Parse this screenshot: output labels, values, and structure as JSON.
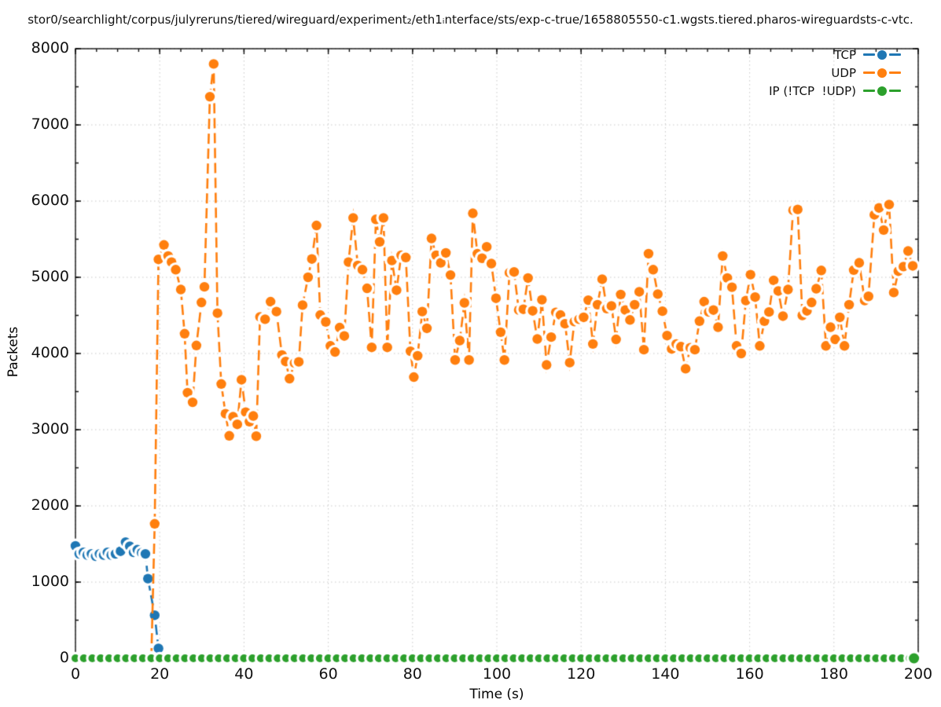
{
  "chart_data": {
    "type": "line",
    "title": "stor0/searchlight/corpus/julyreruns/tiered/wireguard/experiment₂/eth1ᵢnterface/sts/exp-c-true/1658805550-c1.wgsts.tiered.pharos-wireguardsts-c-vtc.",
    "xlabel": "Time (s)",
    "ylabel": "Packets",
    "xlim": [
      0,
      200
    ],
    "ylim": [
      0,
      8000
    ],
    "xticks": [
      0,
      20,
      40,
      60,
      80,
      100,
      120,
      140,
      160,
      180,
      200
    ],
    "yticks": [
      0,
      1000,
      2000,
      3000,
      4000,
      5000,
      6000,
      7000,
      8000
    ],
    "x_minor_step": 5,
    "y_minor_step": 500,
    "grid": true,
    "grid_color": "#c9c9c9",
    "background": "#ffffff",
    "legend_position": "inside-top-right",
    "series": [
      {
        "name": "TCP",
        "color": "#1f77b4",
        "style": "dashed-linespoints",
        "marker": "filled-circle-with-white-halo",
        "marker_radius": 6.2,
        "points": [
          [
            0,
            1475
          ],
          [
            0.9,
            1370
          ],
          [
            1.9,
            1390
          ],
          [
            2.8,
            1355
          ],
          [
            3.8,
            1370
          ],
          [
            4.8,
            1340
          ],
          [
            5.7,
            1370
          ],
          [
            6.7,
            1355
          ],
          [
            7.6,
            1390
          ],
          [
            8.5,
            1355
          ],
          [
            9.5,
            1370
          ],
          [
            10.7,
            1405
          ],
          [
            11.9,
            1525
          ],
          [
            12.9,
            1470
          ],
          [
            13.8,
            1390
          ],
          [
            14.7,
            1425
          ],
          [
            15.7,
            1385
          ],
          [
            16.6,
            1370
          ],
          [
            17.2,
            1045
          ],
          [
            18.8,
            565
          ],
          [
            19.7,
            130
          ]
        ]
      },
      {
        "name": "UDP",
        "color": "#ff7f0e",
        "style": "dashed-linespoints",
        "marker": "filled-circle-with-white-halo",
        "marker_radius": 6.2,
        "points": [
          [
            18,
            0
          ],
          [
            18.8,
            1765
          ],
          [
            19.7,
            5235
          ],
          [
            21,
            5425
          ],
          [
            22,
            5280
          ],
          [
            22.8,
            5200
          ],
          [
            23.8,
            5100
          ],
          [
            25,
            4840
          ],
          [
            25.9,
            4260
          ],
          [
            26.6,
            3485
          ],
          [
            27.8,
            3360
          ],
          [
            28.7,
            4105
          ],
          [
            29.9,
            4670
          ],
          [
            30.6,
            4875
          ],
          [
            31.9,
            7370
          ],
          [
            32.8,
            7800
          ],
          [
            33.7,
            4530
          ],
          [
            34.6,
            3600
          ],
          [
            35.6,
            3210
          ],
          [
            36.5,
            2920
          ],
          [
            37.4,
            3170
          ],
          [
            38.4,
            3070
          ],
          [
            39.4,
            3655
          ],
          [
            40.4,
            3230
          ],
          [
            41.3,
            3105
          ],
          [
            42.2,
            3180
          ],
          [
            42.9,
            2915
          ],
          [
            43.8,
            4480
          ],
          [
            45,
            4450
          ],
          [
            46.3,
            4680
          ],
          [
            47.7,
            4550
          ],
          [
            49,
            3980
          ],
          [
            49.9,
            3895
          ],
          [
            50.8,
            3670
          ],
          [
            52,
            3875
          ],
          [
            53,
            3890
          ],
          [
            53.9,
            4635
          ],
          [
            55.2,
            5000
          ],
          [
            56.1,
            5240
          ],
          [
            57.2,
            5680
          ],
          [
            58.1,
            4505
          ],
          [
            59.4,
            4415
          ],
          [
            60.5,
            4100
          ],
          [
            61.6,
            4020
          ],
          [
            62.7,
            4340
          ],
          [
            63.8,
            4230
          ],
          [
            64.8,
            5200
          ],
          [
            65.9,
            5780
          ],
          [
            67,
            5155
          ],
          [
            68.1,
            5100
          ],
          [
            69.2,
            4855
          ],
          [
            70.3,
            4080
          ],
          [
            71.3,
            5760
          ],
          [
            72.2,
            5465
          ],
          [
            73.1,
            5780
          ],
          [
            74,
            4080
          ],
          [
            75.1,
            5220
          ],
          [
            76.2,
            4830
          ],
          [
            77.3,
            5290
          ],
          [
            78.4,
            5260
          ],
          [
            79.5,
            4030
          ],
          [
            80.3,
            3690
          ],
          [
            81.2,
            3970
          ],
          [
            82.3,
            4550
          ],
          [
            83.4,
            4330
          ],
          [
            84.5,
            5510
          ],
          [
            85.6,
            5290
          ],
          [
            86.7,
            5190
          ],
          [
            87.9,
            5320
          ],
          [
            89,
            5030
          ],
          [
            90.1,
            3915
          ],
          [
            91.2,
            4170
          ],
          [
            92.3,
            4665
          ],
          [
            93.4,
            3915
          ],
          [
            94.3,
            5840
          ],
          [
            95.4,
            5310
          ],
          [
            96.5,
            5250
          ],
          [
            97.6,
            5400
          ],
          [
            98.7,
            5180
          ],
          [
            99.8,
            4725
          ],
          [
            100.9,
            4280
          ],
          [
            101.8,
            3915
          ],
          [
            103,
            5060
          ],
          [
            104.1,
            5070
          ],
          [
            105.2,
            4570
          ],
          [
            106.3,
            4580
          ],
          [
            107.4,
            4990
          ],
          [
            108.5,
            4560
          ],
          [
            109.6,
            4190
          ],
          [
            110.7,
            4705
          ],
          [
            111.8,
            3850
          ],
          [
            112.9,
            4215
          ],
          [
            114,
            4540
          ],
          [
            115.1,
            4505
          ],
          [
            116.2,
            4390
          ],
          [
            117.3,
            3880
          ],
          [
            118.4,
            4420
          ],
          [
            119.5,
            4450
          ],
          [
            120.6,
            4475
          ],
          [
            121.7,
            4700
          ],
          [
            122.8,
            4125
          ],
          [
            123.9,
            4640
          ],
          [
            125,
            4975
          ],
          [
            126.1,
            4590
          ],
          [
            127.2,
            4625
          ],
          [
            128.3,
            4185
          ],
          [
            129.4,
            4775
          ],
          [
            130.5,
            4570
          ],
          [
            131.6,
            4440
          ],
          [
            132.7,
            4640
          ],
          [
            133.8,
            4810
          ],
          [
            134.9,
            4050
          ],
          [
            136,
            5310
          ],
          [
            137.1,
            5100
          ],
          [
            138.2,
            4780
          ],
          [
            139.3,
            4555
          ],
          [
            140.4,
            4235
          ],
          [
            141.5,
            4060
          ],
          [
            142.6,
            4125
          ],
          [
            143.7,
            4090
          ],
          [
            144.8,
            3800
          ],
          [
            145.9,
            4075
          ],
          [
            147,
            4050
          ],
          [
            148.1,
            4425
          ],
          [
            149.2,
            4680
          ],
          [
            150.3,
            4545
          ],
          [
            151.4,
            4570
          ],
          [
            152.5,
            4345
          ],
          [
            153.6,
            5280
          ],
          [
            154.7,
            4990
          ],
          [
            155.8,
            4870
          ],
          [
            156.9,
            4100
          ],
          [
            158,
            4000
          ],
          [
            159.1,
            4695
          ],
          [
            160.2,
            5035
          ],
          [
            161.3,
            4740
          ],
          [
            162.4,
            4100
          ],
          [
            163.5,
            4425
          ],
          [
            164.6,
            4545
          ],
          [
            165.7,
            4960
          ],
          [
            166.8,
            4820
          ],
          [
            167.9,
            4490
          ],
          [
            169.1,
            4840
          ],
          [
            170.3,
            5880
          ],
          [
            171.4,
            5890
          ],
          [
            172.5,
            4500
          ],
          [
            173.6,
            4560
          ],
          [
            174.7,
            4670
          ],
          [
            175.8,
            4850
          ],
          [
            177,
            5090
          ],
          [
            178.1,
            4100
          ],
          [
            179.2,
            4345
          ],
          [
            180.3,
            4185
          ],
          [
            181.4,
            4475
          ],
          [
            182.5,
            4100
          ],
          [
            183.6,
            4640
          ],
          [
            184.7,
            5095
          ],
          [
            186,
            5190
          ],
          [
            187.3,
            4695
          ],
          [
            188.2,
            4750
          ],
          [
            189.6,
            5820
          ],
          [
            190.7,
            5910
          ],
          [
            191.8,
            5620
          ],
          [
            193.1,
            5955
          ],
          [
            194.2,
            4800
          ],
          [
            195.3,
            5080
          ],
          [
            196.5,
            5140
          ],
          [
            197.6,
            5345
          ],
          [
            198.7,
            5150
          ]
        ]
      },
      {
        "name": "IP (!TCP  !UDP)",
        "color": "#2ca02c",
        "style": "dashed-linespoints",
        "marker": "filled-circle-with-white-halo",
        "marker_radius": 5.0,
        "last_point_radius": 6.5,
        "points": [
          [
            0,
            0
          ],
          [
            2,
            0
          ],
          [
            4,
            0
          ],
          [
            6,
            0
          ],
          [
            8,
            0
          ],
          [
            10,
            0
          ],
          [
            12,
            0
          ],
          [
            14,
            0
          ],
          [
            16,
            0
          ],
          [
            18,
            0
          ],
          [
            20,
            0
          ],
          [
            22,
            0
          ],
          [
            24,
            0
          ],
          [
            26,
            0
          ],
          [
            28,
            0
          ],
          [
            30,
            0
          ],
          [
            32,
            0
          ],
          [
            34,
            0
          ],
          [
            36,
            0
          ],
          [
            38,
            0
          ],
          [
            40,
            0
          ],
          [
            42,
            0
          ],
          [
            44,
            0
          ],
          [
            46,
            0
          ],
          [
            48,
            0
          ],
          [
            50,
            0
          ],
          [
            52,
            0
          ],
          [
            54,
            0
          ],
          [
            56,
            0
          ],
          [
            58,
            0
          ],
          [
            60,
            0
          ],
          [
            62,
            0
          ],
          [
            64,
            0
          ],
          [
            66,
            0
          ],
          [
            68,
            0
          ],
          [
            70,
            0
          ],
          [
            72,
            0
          ],
          [
            74,
            0
          ],
          [
            76,
            0
          ],
          [
            78,
            0
          ],
          [
            80,
            0
          ],
          [
            82,
            0
          ],
          [
            84,
            0
          ],
          [
            86,
            0
          ],
          [
            88,
            0
          ],
          [
            90,
            0
          ],
          [
            92,
            0
          ],
          [
            94,
            0
          ],
          [
            96,
            0
          ],
          [
            98,
            0
          ],
          [
            100,
            0
          ],
          [
            102,
            0
          ],
          [
            104,
            0
          ],
          [
            106,
            0
          ],
          [
            108,
            0
          ],
          [
            110,
            0
          ],
          [
            112,
            0
          ],
          [
            114,
            0
          ],
          [
            116,
            0
          ],
          [
            118,
            0
          ],
          [
            120,
            0
          ],
          [
            122,
            0
          ],
          [
            124,
            0
          ],
          [
            126,
            0
          ],
          [
            128,
            0
          ],
          [
            130,
            0
          ],
          [
            132,
            0
          ],
          [
            134,
            0
          ],
          [
            136,
            0
          ],
          [
            138,
            0
          ],
          [
            140,
            0
          ],
          [
            142,
            0
          ],
          [
            144,
            0
          ],
          [
            146,
            0
          ],
          [
            148,
            0
          ],
          [
            150,
            0
          ],
          [
            152,
            0
          ],
          [
            154,
            0
          ],
          [
            156,
            0
          ],
          [
            158,
            0
          ],
          [
            160,
            0
          ],
          [
            162,
            0
          ],
          [
            164,
            0
          ],
          [
            166,
            0
          ],
          [
            168,
            0
          ],
          [
            170,
            0
          ],
          [
            172,
            0
          ],
          [
            174,
            0
          ],
          [
            176,
            0
          ],
          [
            178,
            0
          ],
          [
            180,
            0
          ],
          [
            182,
            0
          ],
          [
            184,
            0
          ],
          [
            186,
            0
          ],
          [
            188,
            0
          ],
          [
            190,
            0
          ],
          [
            192,
            0
          ],
          [
            194,
            0
          ],
          [
            196,
            0
          ],
          [
            198,
            0
          ],
          [
            199,
            0
          ]
        ]
      }
    ]
  },
  "legend": {
    "entries": [
      {
        "label": "TCP",
        "color": "#1f77b4"
      },
      {
        "label": "UDP",
        "color": "#ff7f0e"
      },
      {
        "label": "IP (!TCP  !UDP)",
        "color": "#2ca02c"
      }
    ]
  }
}
